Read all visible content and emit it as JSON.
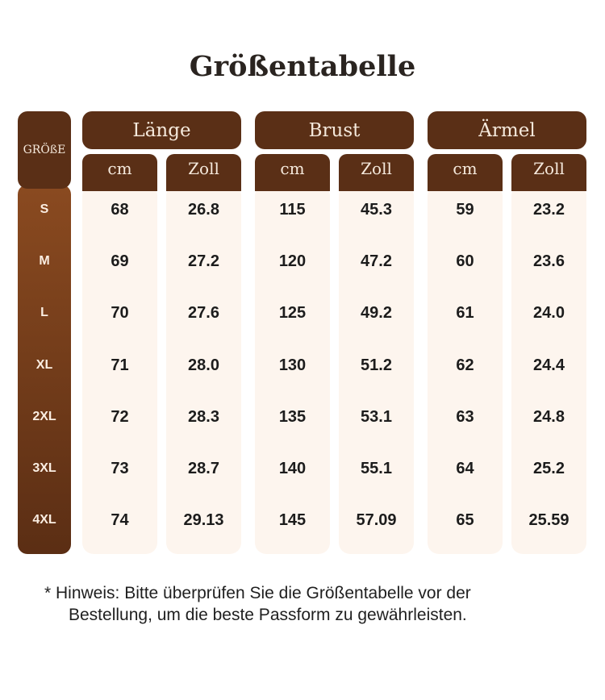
{
  "title": "Größentabelle",
  "size_header": "GRÖßE",
  "groups": [
    {
      "label": "Länge",
      "units": [
        "cm",
        "Zoll"
      ]
    },
    {
      "label": "Brust",
      "units": [
        "cm",
        "Zoll"
      ]
    },
    {
      "label": "Ärmel",
      "units": [
        "cm",
        "Zoll"
      ]
    }
  ],
  "sizes": [
    "S",
    "M",
    "L",
    "XL",
    "2XL",
    "3XL",
    "4XL"
  ],
  "rows": [
    [
      "68",
      "26.8",
      "115",
      "45.3",
      "59",
      "23.2"
    ],
    [
      "69",
      "27.2",
      "120",
      "47.2",
      "60",
      "23.6"
    ],
    [
      "70",
      "27.6",
      "125",
      "49.2",
      "61",
      "24.0"
    ],
    [
      "71",
      "28.0",
      "130",
      "51.2",
      "62",
      "24.4"
    ],
    [
      "72",
      "28.3",
      "135",
      "53.1",
      "63",
      "24.8"
    ],
    [
      "73",
      "28.7",
      "140",
      "55.1",
      "64",
      "25.2"
    ],
    [
      "74",
      "29.13",
      "145",
      "57.09",
      "65",
      "25.59"
    ]
  ],
  "note_line1": "* Hinweis: Bitte überprüfen Sie die Größentabelle vor der",
  "note_line2": "Bestellung, um die beste Passform zu gewährleisten.",
  "colors": {
    "header": "#5a2f16",
    "size_top": "#8a4a20",
    "cell_bg": "#fdf5ee"
  }
}
